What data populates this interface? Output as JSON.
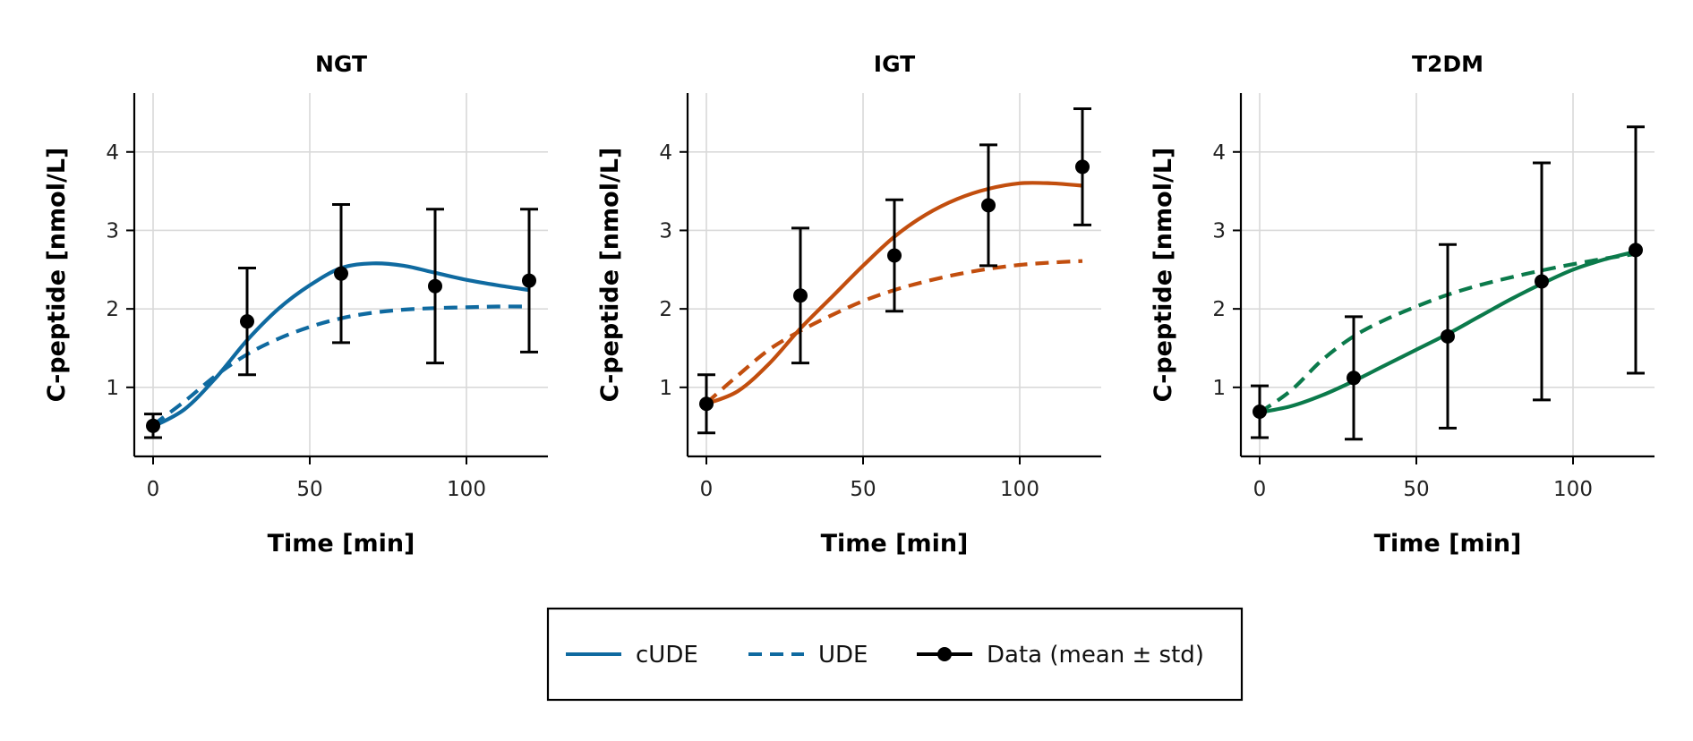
{
  "chart_data": [
    {
      "type": "line",
      "title": "NGT",
      "xlabel": "Time [min]",
      "ylabel": "C-peptide [nmol/L]",
      "xlim": [
        -6,
        126
      ],
      "ylim": [
        0.12,
        4.75
      ],
      "xticks": [
        0,
        50,
        100
      ],
      "yticks": [
        1,
        2,
        3,
        4
      ],
      "grid": true,
      "color": "#0f6aa0",
      "series": [
        {
          "name": "cUDE",
          "style": "solid",
          "x": [
            0,
            10,
            20,
            30,
            40,
            50,
            60,
            70,
            80,
            90,
            100,
            110,
            120
          ],
          "y": [
            0.5,
            0.72,
            1.12,
            1.6,
            2.0,
            2.3,
            2.52,
            2.58,
            2.55,
            2.46,
            2.37,
            2.3,
            2.24
          ]
        },
        {
          "name": "UDE",
          "style": "dashed",
          "x": [
            0,
            10,
            20,
            30,
            40,
            50,
            60,
            70,
            80,
            90,
            100,
            110,
            120
          ],
          "y": [
            0.52,
            0.82,
            1.15,
            1.42,
            1.62,
            1.77,
            1.88,
            1.95,
            1.99,
            2.01,
            2.02,
            2.03,
            2.03
          ]
        },
        {
          "name": "Data (mean ± std)",
          "style": "errorbar",
          "x": [
            0,
            30,
            60,
            90,
            120
          ],
          "y": [
            0.51,
            1.84,
            2.45,
            2.29,
            2.36
          ],
          "err": [
            0.15,
            0.68,
            0.88,
            0.98,
            0.91
          ]
        }
      ]
    },
    {
      "type": "line",
      "title": "IGT",
      "xlabel": "Time [min]",
      "ylabel": "C-peptide [nmol/L]",
      "xlim": [
        -6,
        126
      ],
      "ylim": [
        0.12,
        4.75
      ],
      "xticks": [
        0,
        50,
        100
      ],
      "yticks": [
        1,
        2,
        3,
        4
      ],
      "grid": true,
      "color": "#c24e0e",
      "series": [
        {
          "name": "cUDE",
          "style": "solid",
          "x": [
            0,
            10,
            20,
            30,
            40,
            50,
            60,
            70,
            80,
            90,
            100,
            110,
            120
          ],
          "y": [
            0.79,
            0.95,
            1.3,
            1.75,
            2.15,
            2.55,
            2.92,
            3.2,
            3.4,
            3.53,
            3.6,
            3.6,
            3.57
          ]
        },
        {
          "name": "UDE",
          "style": "dashed",
          "x": [
            0,
            10,
            20,
            30,
            40,
            50,
            60,
            70,
            80,
            90,
            100,
            110,
            120
          ],
          "y": [
            0.8,
            1.15,
            1.48,
            1.72,
            1.92,
            2.1,
            2.24,
            2.35,
            2.44,
            2.51,
            2.56,
            2.59,
            2.61
          ]
        },
        {
          "name": "Data (mean ± std)",
          "style": "errorbar",
          "x": [
            0,
            30,
            60,
            90,
            120
          ],
          "y": [
            0.79,
            2.17,
            2.68,
            3.32,
            3.81
          ],
          "err": [
            0.37,
            0.86,
            0.71,
            0.77,
            0.74
          ]
        }
      ]
    },
    {
      "type": "line",
      "title": "T2DM",
      "xlabel": "Time [min]",
      "ylabel": "C-peptide [nmol/L]",
      "xlim": [
        -6,
        126
      ],
      "ylim": [
        0.12,
        4.75
      ],
      "xticks": [
        0,
        50,
        100
      ],
      "yticks": [
        1,
        2,
        3,
        4
      ],
      "grid": true,
      "color": "#0b7a4b",
      "series": [
        {
          "name": "cUDE",
          "style": "solid",
          "x": [
            0,
            10,
            20,
            30,
            40,
            50,
            60,
            70,
            80,
            90,
            100,
            110,
            120
          ],
          "y": [
            0.68,
            0.76,
            0.9,
            1.08,
            1.28,
            1.48,
            1.68,
            1.9,
            2.12,
            2.32,
            2.5,
            2.63,
            2.73
          ]
        },
        {
          "name": "UDE",
          "style": "dashed",
          "x": [
            0,
            10,
            20,
            30,
            40,
            50,
            60,
            70,
            80,
            90,
            100,
            110,
            120
          ],
          "y": [
            0.68,
            0.96,
            1.35,
            1.65,
            1.86,
            2.03,
            2.18,
            2.3,
            2.4,
            2.49,
            2.57,
            2.64,
            2.7
          ]
        },
        {
          "name": "Data (mean ± std)",
          "style": "errorbar",
          "x": [
            0,
            30,
            60,
            90,
            120
          ],
          "y": [
            0.69,
            1.12,
            1.65,
            2.35,
            2.75
          ],
          "err": [
            0.33,
            0.78,
            1.17,
            1.51,
            1.57
          ]
        }
      ]
    }
  ],
  "legend": {
    "placement": "bottom-center",
    "items": [
      {
        "label": "cUDE",
        "style": "solid",
        "color": "#0f6aa0"
      },
      {
        "label": "UDE",
        "style": "dashed",
        "color": "#0f6aa0"
      },
      {
        "label": "Data (mean ± std)",
        "style": "marker-line",
        "color": "#000000"
      }
    ]
  }
}
